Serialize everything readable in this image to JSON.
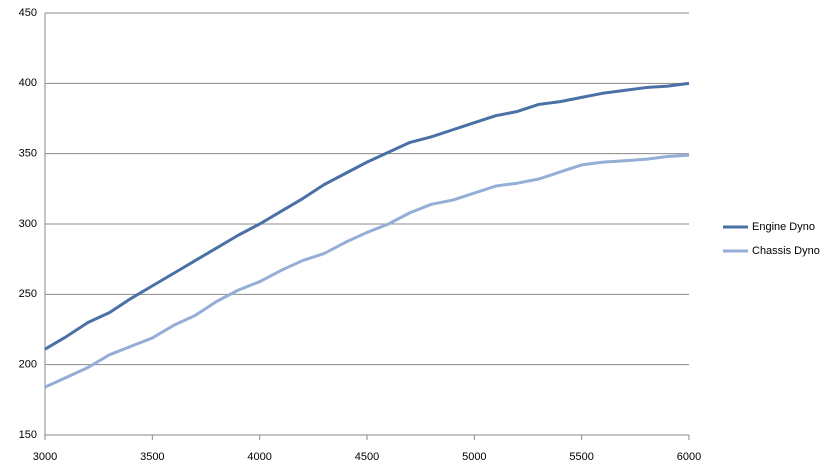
{
  "chart_data": {
    "type": "line",
    "x": [
      3000,
      3100,
      3200,
      3300,
      3400,
      3500,
      3600,
      3700,
      3800,
      3900,
      4000,
      4100,
      4200,
      4300,
      4400,
      4500,
      4600,
      4700,
      4800,
      4900,
      5000,
      5100,
      5200,
      5300,
      5400,
      5500,
      5600,
      5700,
      5800,
      5900,
      6000
    ],
    "series": [
      {
        "name": "Engine Dyno",
        "color": "#4a70a6",
        "values": [
          211,
          220,
          230,
          237,
          247,
          256,
          265,
          274,
          283,
          292,
          300,
          309,
          318,
          328,
          336,
          344,
          351,
          358,
          362,
          367,
          372,
          377,
          380,
          385,
          387,
          390,
          393,
          395,
          397,
          398,
          400
        ]
      },
      {
        "name": "Chassis Dyno",
        "color": "#94aed6",
        "values": [
          184,
          191,
          198,
          207,
          213,
          219,
          228,
          235,
          245,
          253,
          259,
          267,
          274,
          279,
          287,
          294,
          300,
          308,
          314,
          317,
          322,
          327,
          329,
          332,
          337,
          342,
          344,
          345,
          346,
          348,
          349
        ]
      }
    ],
    "xlim": [
      3000,
      6000
    ],
    "xticks": [
      3000,
      3500,
      4000,
      4500,
      5000,
      5500,
      6000
    ],
    "ylim": [
      150,
      450
    ],
    "yticks": [
      150,
      200,
      250,
      300,
      350,
      400,
      450
    ],
    "grid": true,
    "legend": "right"
  }
}
